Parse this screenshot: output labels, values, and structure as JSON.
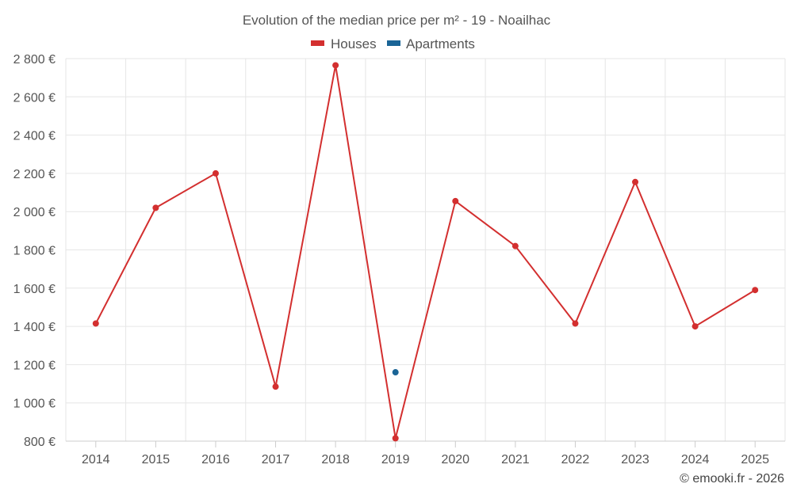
{
  "chart_data": {
    "type": "line",
    "title": "Evolution of the median price per m² - 19 - Noailhac",
    "xlabel": "",
    "ylabel": "",
    "categories": [
      "2014",
      "2015",
      "2016",
      "2017",
      "2018",
      "2019",
      "2020",
      "2021",
      "2022",
      "2023",
      "2024",
      "2025"
    ],
    "ylim": [
      800,
      2800
    ],
    "yticks": [
      800,
      1000,
      1200,
      1400,
      1600,
      1800,
      2000,
      2200,
      2400,
      2600,
      2800
    ],
    "ytick_labels": [
      "800 €",
      "1 000 €",
      "1 200 €",
      "1 400 €",
      "1 600 €",
      "1 800 €",
      "2 000 €",
      "2 200 €",
      "2 400 €",
      "2 600 €",
      "2 800 €"
    ],
    "grid": true,
    "legend_position": "top-center",
    "series": [
      {
        "name": "Houses",
        "color": "#d32f2f",
        "values": [
          1415,
          2020,
          2200,
          1085,
          2765,
          815,
          2055,
          1820,
          1415,
          2155,
          1400,
          1590
        ]
      },
      {
        "name": "Apartments",
        "color": "#1a6496",
        "values": [
          null,
          null,
          null,
          null,
          null,
          1160,
          null,
          null,
          null,
          null,
          null,
          null
        ]
      }
    ]
  },
  "credit": "© emooki.fr - 2026"
}
